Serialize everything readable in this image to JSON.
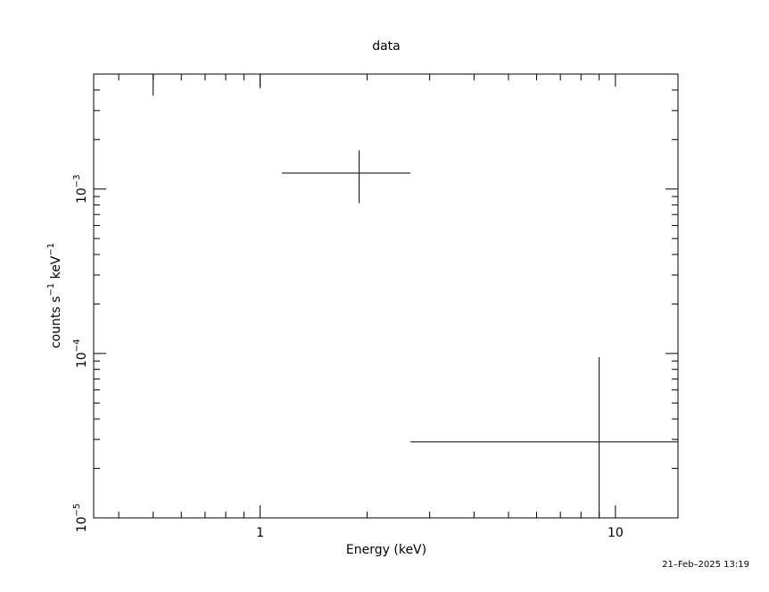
{
  "timestamp": "21–Feb–2025 13:19",
  "chart_data": {
    "type": "scatter",
    "title": "data",
    "xlabel": "Energy (keV)",
    "ylabel_parts": {
      "base": "counts s",
      "sup1": "−1",
      "mid": " keV",
      "sup2": "−1"
    },
    "xscale": "log",
    "yscale": "log",
    "xlim": [
      0.34,
      15.0
    ],
    "ylim": [
      1e-05,
      0.005
    ],
    "x_ticks": [
      {
        "value": 1,
        "label": "1"
      },
      {
        "value": 10,
        "label": "10"
      }
    ],
    "y_ticks": [
      {
        "value": 1e-05,
        "base": "10",
        "exp": "−5"
      },
      {
        "value": 0.0001,
        "base": "10",
        "exp": "−4"
      },
      {
        "value": 0.001,
        "base": "10",
        "exp": "−3"
      }
    ],
    "series": [
      {
        "points": [
          {
            "x": 0.5,
            "y": 0.0066,
            "xlo": 0.5,
            "xhi": 0.5,
            "ylo": 0.0037,
            "yhi": 0.02
          },
          {
            "x": 1.0,
            "y": 0.006,
            "xlo": 1.0,
            "xhi": 1.0,
            "ylo": 0.0041,
            "yhi": 0.02
          },
          {
            "x": 1.9,
            "y": 0.00125,
            "xlo": 1.15,
            "xhi": 2.65,
            "ylo": 0.00082,
            "yhi": 0.00172
          },
          {
            "x": 9.0,
            "y": 2.9e-05,
            "xlo": 2.65,
            "xhi": 15.0,
            "ylo": 1e-05,
            "yhi": 9.5e-05
          }
        ]
      }
    ]
  }
}
